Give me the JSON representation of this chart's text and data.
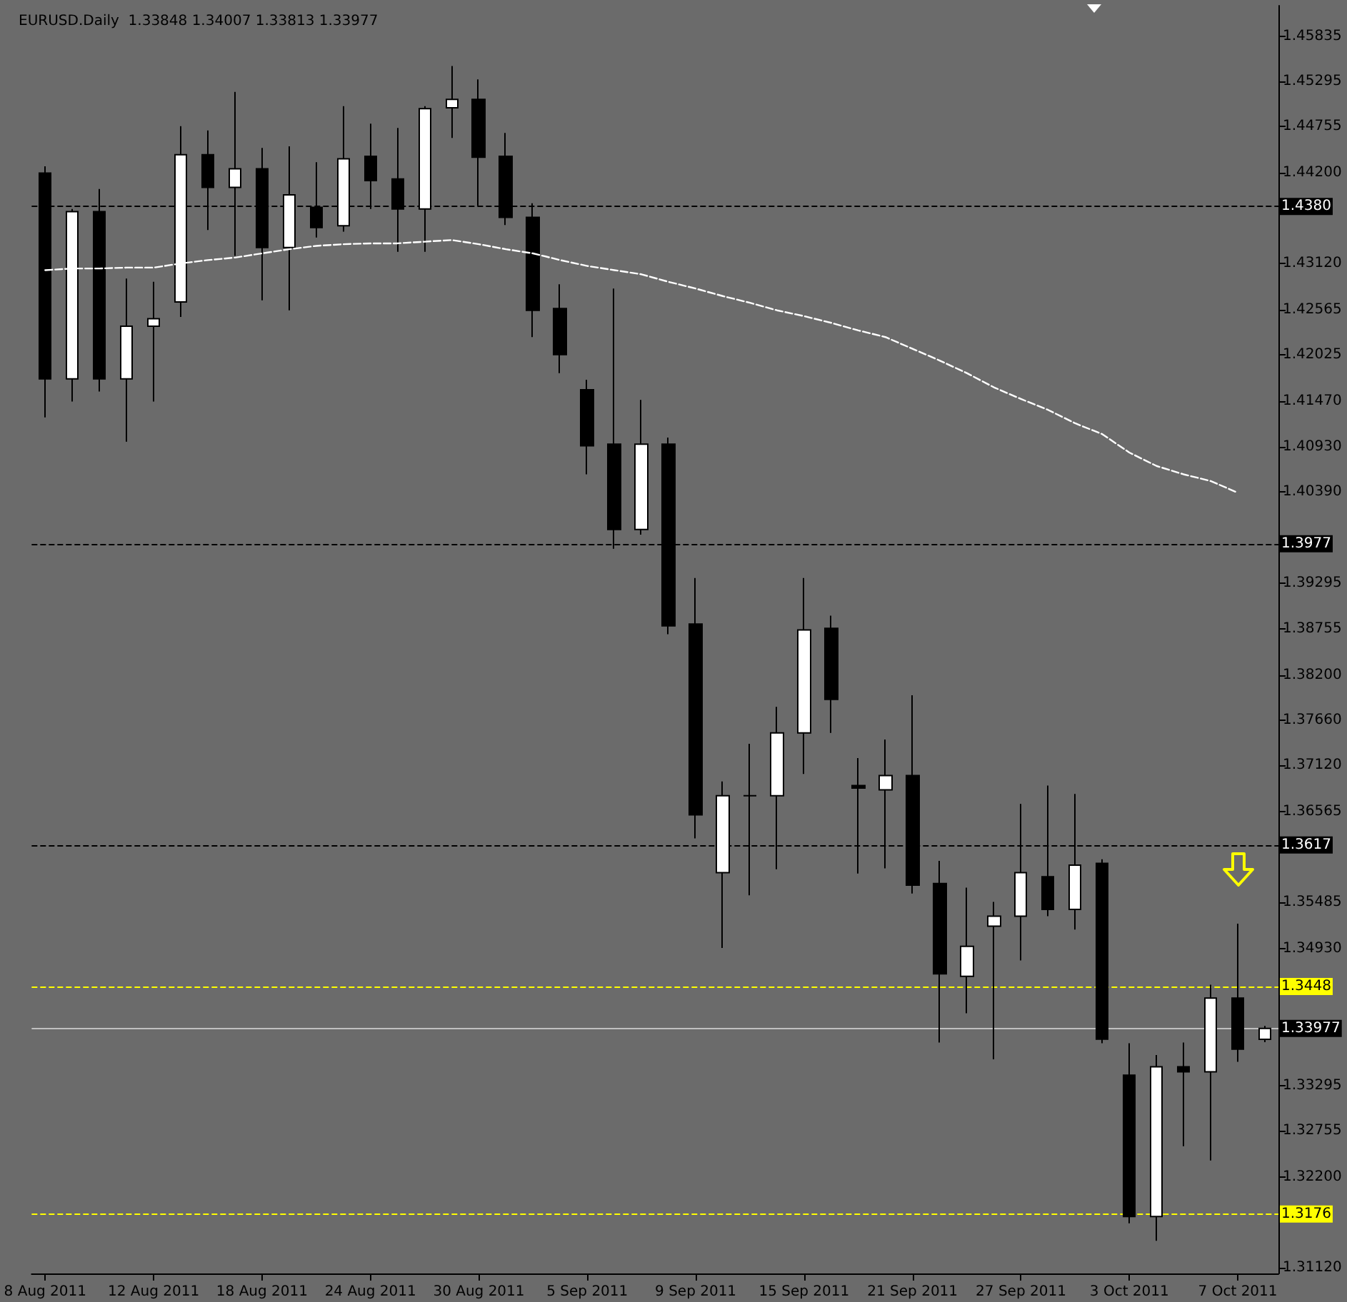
{
  "chart_data": {
    "type": "candlestick",
    "title": "EURUSD.Daily  1.33848 1.34007 1.33813 1.33977",
    "categories": [
      "8 Aug 2011",
      null,
      null,
      null,
      "12 Aug 2011",
      null,
      null,
      null,
      "18 Aug 2011",
      null,
      null,
      null,
      "24 Aug 2011",
      null,
      null,
      null,
      "30 Aug 2011",
      null,
      null,
      null,
      "5 Sep 2011",
      null,
      null,
      null,
      "9 Sep 2011",
      null,
      null,
      null,
      "15 Sep 2011",
      null,
      null,
      null,
      "21 Sep 2011",
      null,
      null,
      null,
      "27 Sep 2011",
      null,
      null,
      null,
      "3 Oct 2011",
      null,
      null,
      null,
      "7 Oct 2011",
      null
    ],
    "ohlc": [
      [
        1.442,
        1.4428,
        1.4128,
        1.4174
      ],
      [
        1.4174,
        1.4377,
        1.4147,
        1.4374
      ],
      [
        1.4374,
        1.4401,
        1.4159,
        1.4174
      ],
      [
        1.4174,
        1.4294,
        1.4099,
        1.4237
      ],
      [
        1.4237,
        1.429,
        1.4147,
        1.4246
      ],
      [
        1.4266,
        1.4476,
        1.4248,
        1.4442
      ],
      [
        1.4442,
        1.4471,
        1.4352,
        1.4403
      ],
      [
        1.4403,
        1.4517,
        1.4321,
        1.4425
      ],
      [
        1.4425,
        1.445,
        1.4268,
        1.4331
      ],
      [
        1.4331,
        1.4452,
        1.4256,
        1.4394
      ],
      [
        1.4379,
        1.4433,
        1.4343,
        1.4355
      ],
      [
        1.4357,
        1.45,
        1.435,
        1.4437
      ],
      [
        1.444,
        1.4479,
        1.4377,
        1.4411
      ],
      [
        1.4413,
        1.4474,
        1.4326,
        1.4377
      ],
      [
        1.4377,
        1.45,
        1.4326,
        1.4497
      ],
      [
        1.4498,
        1.4548,
        1.4462,
        1.4508
      ],
      [
        1.4508,
        1.4532,
        1.4381,
        1.4439
      ],
      [
        1.444,
        1.4468,
        1.4358,
        1.4367
      ],
      [
        1.4367,
        1.4384,
        1.4224,
        1.4256
      ],
      [
        1.4258,
        1.4287,
        1.4181,
        1.4203
      ],
      [
        1.4161,
        1.4173,
        1.406,
        1.4094
      ],
      [
        1.4096,
        1.4282,
        1.3971,
        1.3994
      ],
      [
        1.3994,
        1.4149,
        1.3988,
        1.4096
      ],
      [
        1.4096,
        1.4104,
        1.3869,
        1.3879
      ],
      [
        1.3881,
        1.3936,
        1.3625,
        1.3653
      ],
      [
        1.3584,
        1.3693,
        1.3494,
        1.3676
      ],
      [
        1.3676,
        1.3738,
        1.3557,
        1.3676
      ],
      [
        1.3676,
        1.3782,
        1.3588,
        1.3751
      ],
      [
        1.3751,
        1.3936,
        1.3702,
        1.3874
      ],
      [
        1.3876,
        1.3891,
        1.3751,
        1.3791
      ],
      [
        1.3688,
        1.3721,
        1.3583,
        1.3685
      ],
      [
        1.3683,
        1.3743,
        1.3589,
        1.37
      ],
      [
        1.37,
        1.3796,
        1.3559,
        1.3569
      ],
      [
        1.3571,
        1.3598,
        1.3381,
        1.3463
      ],
      [
        1.346,
        1.3566,
        1.3416,
        1.3496
      ],
      [
        1.352,
        1.3549,
        1.3361,
        1.3532
      ],
      [
        1.3532,
        1.3666,
        1.3479,
        1.3584
      ],
      [
        1.3579,
        1.3688,
        1.3532,
        1.354
      ],
      [
        1.354,
        1.3678,
        1.3516,
        1.3593
      ],
      [
        1.3595,
        1.36,
        1.338,
        1.3385
      ],
      [
        1.3342,
        1.338,
        1.3165,
        1.3173
      ],
      [
        1.3173,
        1.3366,
        1.3144,
        1.3352
      ],
      [
        1.3352,
        1.3381,
        1.3257,
        1.3346
      ],
      [
        1.3346,
        1.345,
        1.324,
        1.3434
      ],
      [
        1.3434,
        1.3523,
        1.3358,
        1.3373
      ],
      [
        1.33848,
        1.34007,
        1.33813,
        1.33977
      ]
    ],
    "series": [
      {
        "type": "line",
        "color": "#ffffff",
        "line_style": "dashed",
        "marker": "none",
        "values": [
          1.4304,
          1.4306,
          1.4306,
          1.4307,
          1.4307,
          1.4312,
          1.4316,
          1.4319,
          1.4324,
          1.4329,
          1.4333,
          1.4335,
          1.4336,
          1.4336,
          1.4338,
          1.434,
          1.4335,
          1.4329,
          1.4324,
          1.4316,
          1.4309,
          1.4304,
          1.4299,
          1.429,
          1.4282,
          1.4273,
          1.4265,
          1.4256,
          1.4249,
          1.4241,
          1.4232,
          1.4224,
          1.421,
          1.4196,
          1.4181,
          1.4164,
          1.415,
          1.4137,
          1.4121,
          1.4108,
          1.4086,
          1.407,
          1.406,
          1.4052,
          1.4038,
          null
        ]
      }
    ],
    "ylim": [
      1.3105,
      1.462
    ],
    "yticks": [
      1.45835,
      1.45295,
      1.44755,
      {
        "value": 1.442,
        "label": "1.44200"
      },
      {
        "value": 1.4312,
        "label": "1.43120"
      },
      1.42565,
      1.42025,
      {
        "value": 1.4147,
        "label": "1.41470"
      },
      {
        "value": 1.4093,
        "label": "1.40930"
      },
      {
        "value": 1.4039,
        "label": "1.40390"
      },
      1.39295,
      1.38755,
      {
        "value": 1.382,
        "label": "1.38200"
      },
      {
        "value": 1.3766,
        "label": "1.37660"
      },
      {
        "value": 1.3712,
        "label": "1.37120"
      },
      1.36565,
      1.35485,
      {
        "value": 1.3493,
        "label": "1.34930"
      },
      1.33295,
      1.32755,
      {
        "value": 1.322,
        "label": "1.32200"
      },
      {
        "value": 1.3112,
        "label": "1.31120"
      }
    ],
    "ref_lines": [
      {
        "axis": "y",
        "value": 1.438,
        "label": "1.4380",
        "color": "#000000",
        "line_style": "dashed"
      },
      {
        "axis": "y",
        "value": 1.3977,
        "label": "1.3977",
        "color": "#000000",
        "line_style": "dashed"
      },
      {
        "axis": "y",
        "value": 1.3617,
        "label": "1.3617",
        "color": "#000000",
        "line_style": "dashed"
      },
      {
        "axis": "y",
        "value": 1.3448,
        "label": "1.3448",
        "color": "#ffff00",
        "line_style": "dashed"
      },
      {
        "axis": "y",
        "value": 1.33977,
        "label": "1.33977",
        "color": "#c0c0c0",
        "line_style": "solid"
      },
      {
        "axis": "y",
        "value": 1.3176,
        "label": "1.3176",
        "color": "#ffff00",
        "line_style": "dashed"
      }
    ],
    "grid": false
  }
}
